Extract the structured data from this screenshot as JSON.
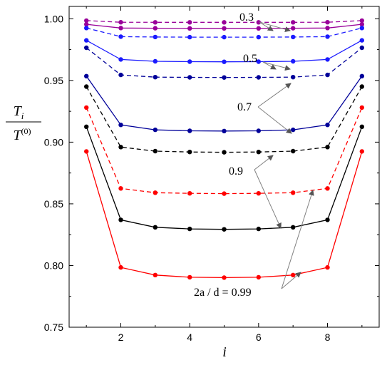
{
  "chart_data": {
    "type": "line",
    "title": "",
    "xlabel": "i",
    "ylabel": {
      "numerator": "T",
      "numerator_sub": "i",
      "denominator": "T",
      "denominator_sup": "(0)"
    },
    "xlim": [
      0.5,
      9.5
    ],
    "ylim": [
      0.75,
      1.01
    ],
    "x_ticks": [
      2,
      4,
      6,
      8
    ],
    "y_ticks": [
      0.75,
      0.8,
      0.85,
      0.9,
      0.95,
      1.0
    ],
    "y_tick_labels": [
      "0.75",
      "0.80",
      "0.85",
      "0.90",
      "0.95",
      "1.00"
    ],
    "grid": false,
    "legend": "none",
    "x": [
      1,
      2,
      3,
      4,
      5,
      6,
      7,
      8,
      9
    ],
    "series": [
      {
        "color": "#990099",
        "dash": "solid",
        "values": [
          0.9955,
          0.9925,
          0.9923,
          0.9922,
          0.9922,
          0.9922,
          0.9923,
          0.9925,
          0.9955
        ]
      },
      {
        "color": "#990099",
        "dash": "dashed",
        "values": [
          0.9985,
          0.9972,
          0.9971,
          0.9971,
          0.9971,
          0.9971,
          0.9971,
          0.9972,
          0.9985
        ]
      },
      {
        "color": "#1a1aff",
        "dash": "dashed",
        "values": [
          0.9925,
          0.9855,
          0.9852,
          0.9851,
          0.9851,
          0.9851,
          0.9852,
          0.9855,
          0.9925
        ]
      },
      {
        "color": "#1a1aff",
        "dash": "solid",
        "values": [
          0.9825,
          0.967,
          0.9655,
          0.9652,
          0.9651,
          0.9652,
          0.9655,
          0.967,
          0.9825
        ]
      },
      {
        "color": "#000099",
        "dash": "dashed",
        "values": [
          0.9765,
          0.9545,
          0.9527,
          0.9525,
          0.9524,
          0.9525,
          0.9527,
          0.9545,
          0.9765
        ]
      },
      {
        "color": "#000099",
        "dash": "solid",
        "values": [
          0.9535,
          0.914,
          0.91,
          0.9092,
          0.909,
          0.9092,
          0.91,
          0.914,
          0.9535
        ]
      },
      {
        "color": "#000000",
        "dash": "dashed",
        "values": [
          0.945,
          0.896,
          0.8927,
          0.892,
          0.8918,
          0.892,
          0.8927,
          0.896,
          0.945
        ]
      },
      {
        "color": "#ff0000",
        "dash": "dashed",
        "values": [
          0.928,
          0.8625,
          0.859,
          0.8585,
          0.8583,
          0.8585,
          0.859,
          0.8625,
          0.928
        ]
      },
      {
        "color": "#000000",
        "dash": "solid",
        "values": [
          0.9125,
          0.837,
          0.831,
          0.8297,
          0.8293,
          0.8297,
          0.831,
          0.837,
          0.9125
        ]
      },
      {
        "color": "#ff0000",
        "dash": "solid",
        "values": [
          0.8925,
          0.7985,
          0.7923,
          0.7905,
          0.7902,
          0.7905,
          0.7923,
          0.7985,
          0.8925
        ]
      }
    ],
    "annotations": [
      {
        "label": "0.3",
        "series_index": [
          0,
          1
        ]
      },
      {
        "label": "0.5",
        "series_index": [
          2,
          3
        ]
      },
      {
        "label": "0.7",
        "series_index": [
          4,
          5
        ]
      },
      {
        "label": "0.9",
        "series_index": [
          6,
          8
        ]
      },
      {
        "label": "2a / d = 0.99",
        "series_index": [
          7,
          9
        ]
      }
    ]
  }
}
